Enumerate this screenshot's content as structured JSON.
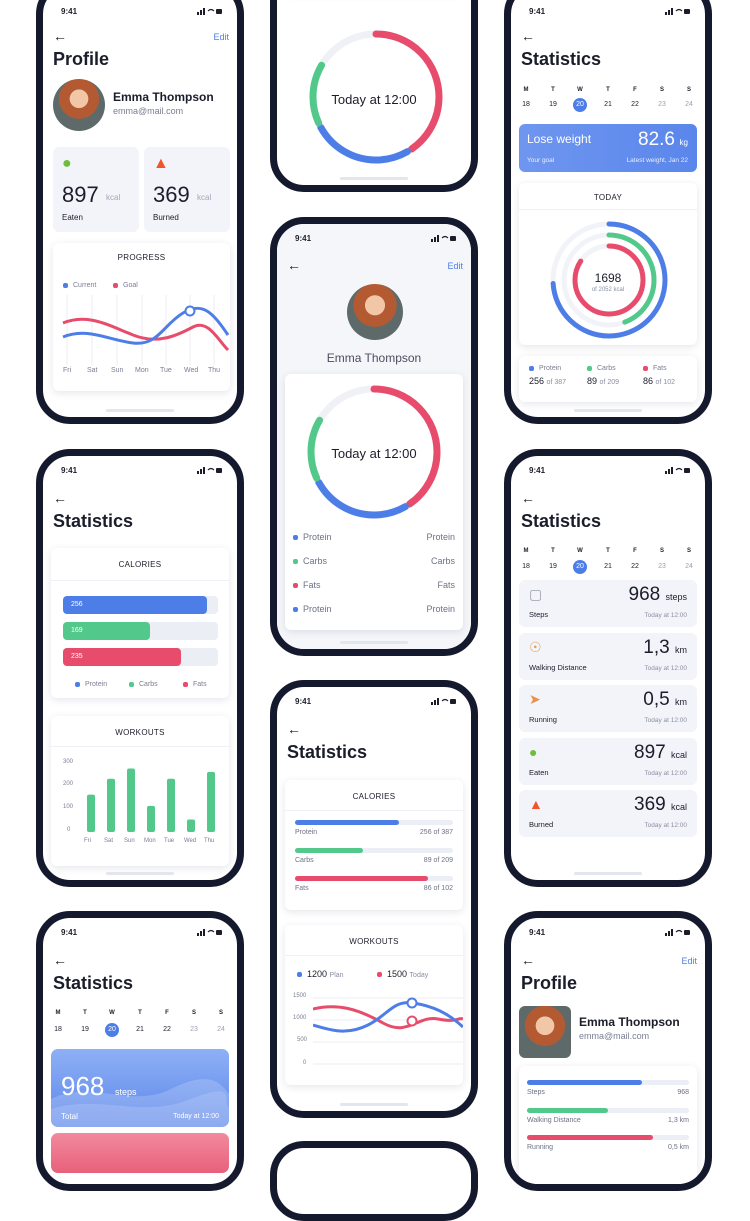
{
  "status_time": "9:41",
  "colors": {
    "blue": "#4d7ee8",
    "green": "#52c98a",
    "red": "#e84c6c",
    "frame": "#15192e"
  },
  "back_icon": "arrow-left-icon",
  "edit_label": "Edit",
  "profile_title": "Profile",
  "statistics_title": "Statistics",
  "user": {
    "name": "Emma Thompson",
    "email": "emma@mail.com"
  },
  "profile_cards": {
    "eaten": {
      "icon": "apple-icon",
      "value": "897",
      "unit": "kcal",
      "label": "Eaten"
    },
    "burned": {
      "icon": "fire-icon",
      "value": "369",
      "unit": "kcal",
      "label": "Burned"
    }
  },
  "progress": {
    "title": "PROGRESS",
    "legend": [
      "Current",
      "Goal"
    ],
    "days": [
      "Fri",
      "Sat",
      "Sun",
      "Mon",
      "Tue",
      "Wed",
      "Thu"
    ]
  },
  "today_ring": {
    "label": "Today at 12:00"
  },
  "macro_list": [
    {
      "left": "Protein",
      "right": "Protein",
      "color": "#4d7ee8"
    },
    {
      "left": "Carbs",
      "right": "Carbs",
      "color": "#52c98a"
    },
    {
      "left": "Fats",
      "right": "Fats",
      "color": "#e84c6c"
    },
    {
      "left": "Protein",
      "right": "Protein",
      "color": "#4d7ee8"
    }
  ],
  "calendar": {
    "weekdays": [
      "M",
      "T",
      "W",
      "T",
      "F",
      "S",
      "S"
    ],
    "dates": [
      "18",
      "19",
      "20",
      "21",
      "22",
      "23",
      "24"
    ],
    "selected_index": 2
  },
  "lose_weight": {
    "label": "Lose weight",
    "value": "82.6",
    "unit": "kg",
    "left_sub": "Your goal",
    "right_sub": "Latest weight, Jan 22"
  },
  "today_card": {
    "title": "TODAY",
    "value": "1698",
    "sub": "of 2052 kcal",
    "macros": [
      {
        "name": "Protein",
        "value": "256",
        "of": "of 387",
        "color": "#4d7ee8"
      },
      {
        "name": "Carbs",
        "value": "89",
        "of": "of 209",
        "color": "#52c98a"
      },
      {
        "name": "Fats",
        "value": "86",
        "of": "of 102",
        "color": "#e84c6c"
      }
    ]
  },
  "calories_bars": {
    "title": "CALORIES",
    "bars": [
      {
        "value": "256",
        "fill": 0.93,
        "color": "#4d7ee8"
      },
      {
        "value": "169",
        "fill": 0.56,
        "color": "#52c98a"
      },
      {
        "value": "235",
        "fill": 0.76,
        "color": "#e84c6c"
      }
    ],
    "legend": [
      "Protein",
      "Carbs",
      "Fats"
    ]
  },
  "workouts_bars": {
    "title": "WORKOUTS",
    "y_ticks": [
      "300",
      "200",
      "100",
      "0"
    ],
    "days": [
      "Fri",
      "Sat",
      "Sun",
      "Mon",
      "Tue",
      "Wed",
      "Thu"
    ],
    "values": [
      165,
      235,
      280,
      115,
      235,
      55,
      265
    ]
  },
  "activity": [
    {
      "icon": "shoe-icon",
      "label": "Steps",
      "value": "968",
      "unit": "steps",
      "time": "Today at 12:00"
    },
    {
      "icon": "walking-icon",
      "label": "Walking Distance",
      "value": "1,3",
      "unit": "km",
      "time": "Today at 12:00"
    },
    {
      "icon": "running-icon",
      "label": "Running",
      "value": "0,5",
      "unit": "km",
      "time": "Today at 12:00"
    },
    {
      "icon": "apple-icon",
      "label": "Eaten",
      "value": "897",
      "unit": "kcal",
      "time": "Today at 12:00"
    },
    {
      "icon": "fire-icon",
      "label": "Burned",
      "value": "369",
      "unit": "kcal",
      "time": "Today at 12:00"
    }
  ],
  "calories_list": {
    "title": "CALORIES",
    "rows": [
      {
        "name": "Protein",
        "value": "256 of 387",
        "fill": 0.66,
        "color": "#4d7ee8"
      },
      {
        "name": "Carbs",
        "value": "89 of 209",
        "fill": 0.43,
        "color": "#52c98a"
      },
      {
        "name": "Fats",
        "value": "86 of 102",
        "fill": 0.84,
        "color": "#e84c6c"
      }
    ]
  },
  "workouts_line": {
    "title": "WORKOUTS",
    "plan_value": "1200",
    "plan_label": "Plan",
    "today_value": "1500",
    "today_label": "Today",
    "y_ticks": [
      "1500",
      "1000",
      "500",
      "0"
    ]
  },
  "steps_card": {
    "value": "968",
    "unit": "steps",
    "label": "Total",
    "time": "Today at 12:00"
  },
  "profile_stats": [
    {
      "name": "Steps",
      "value": "968",
      "fill": 0.71,
      "color": "#4d7ee8"
    },
    {
      "name": "Walking Distance",
      "value": "1,3 km",
      "fill": 0.5,
      "color": "#52c98a"
    },
    {
      "name": "Running",
      "value": "0,5 km",
      "fill": 0.78,
      "color": "#e84c6c"
    }
  ]
}
